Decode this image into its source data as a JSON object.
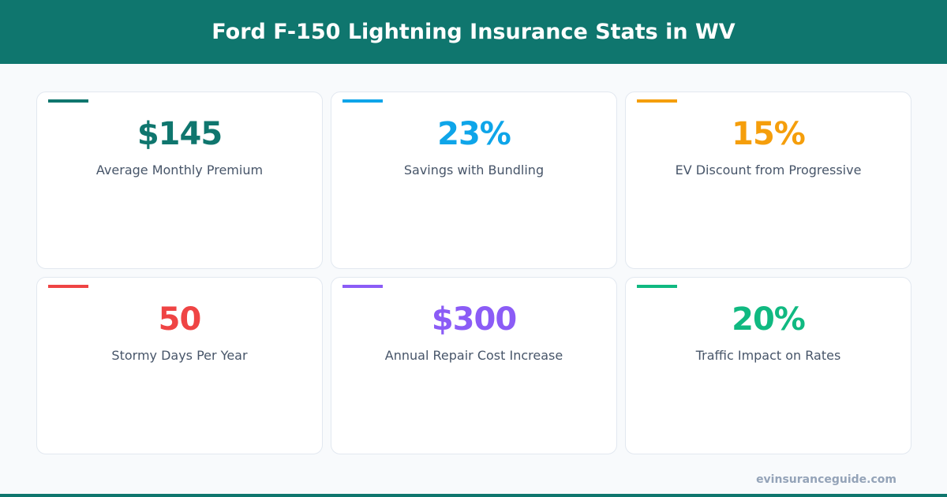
{
  "header": {
    "title": "Ford F-150 Lightning Insurance Stats in WV"
  },
  "cards": [
    {
      "value": "$145",
      "label": "Average Monthly Premium",
      "color": "#0f766e"
    },
    {
      "value": "23%",
      "label": "Savings with Bundling",
      "color": "#0ea5e9"
    },
    {
      "value": "15%",
      "label": "EV Discount from Progressive",
      "color": "#f59e0b"
    },
    {
      "value": "50",
      "label": "Stormy Days Per Year",
      "color": "#ef4444"
    },
    {
      "value": "$300",
      "label": "Annual Repair Cost Increase",
      "color": "#8b5cf6"
    },
    {
      "value": "20%",
      "label": "Traffic Impact on Rates",
      "color": "#10b981"
    }
  ],
  "footer": {
    "site": "evinsuranceguide.com"
  }
}
